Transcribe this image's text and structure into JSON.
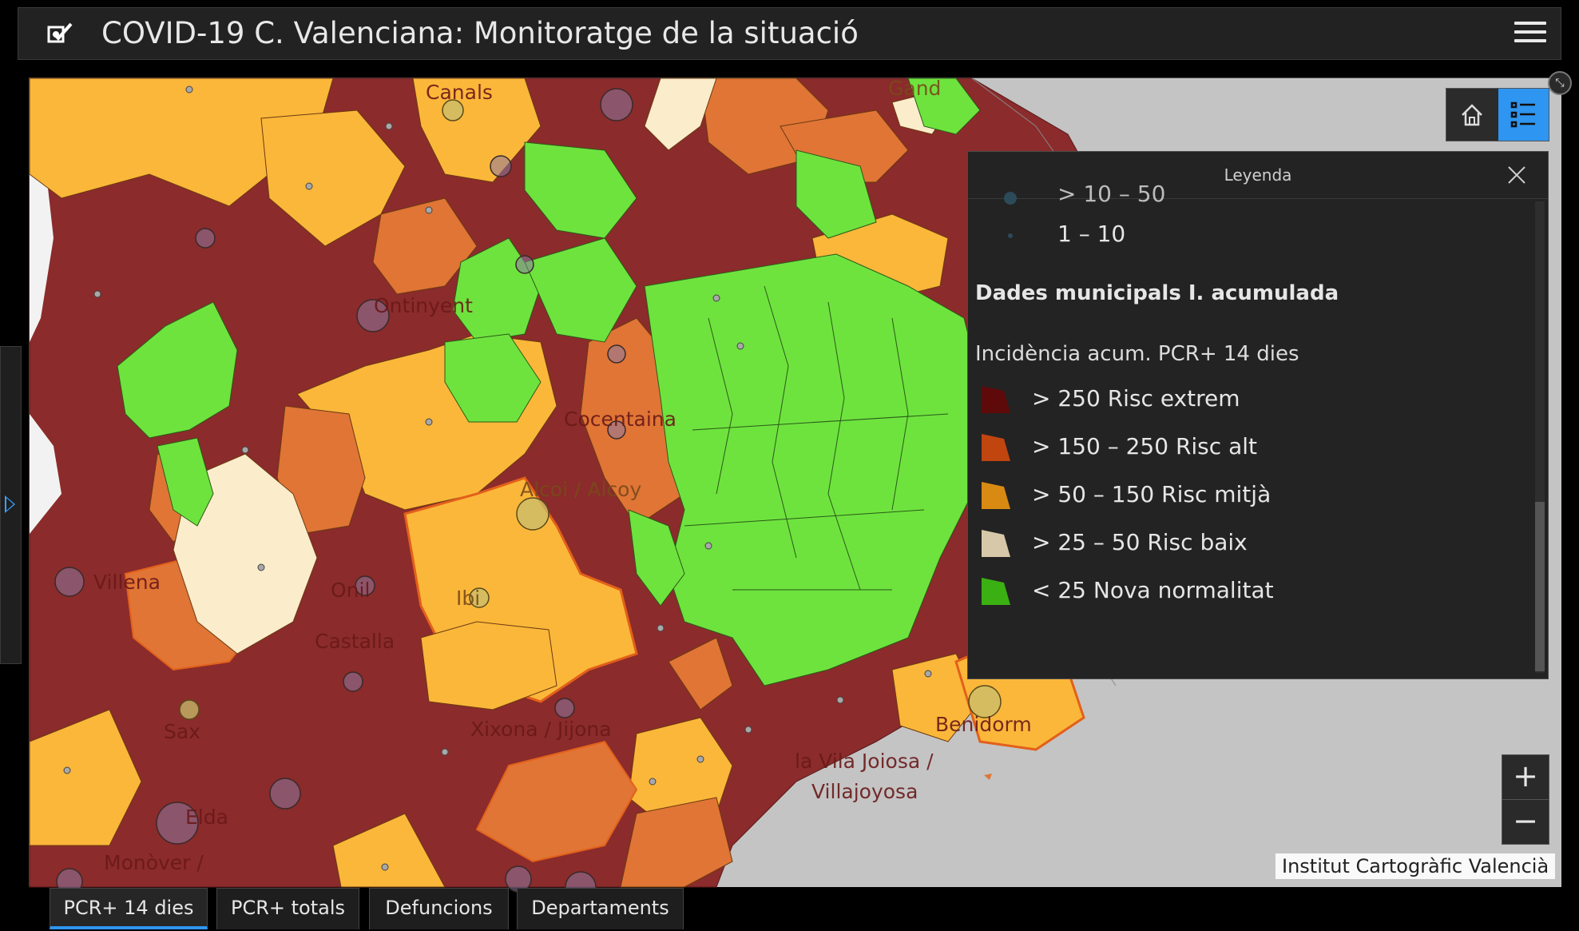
{
  "header": {
    "title": "COVID-19 C. Valenciana: Monitoratge de la situació"
  },
  "map": {
    "places": [
      "Canals",
      "Ontinyent",
      "Cocentaina",
      "Alcoi / Alcoy",
      "Villena",
      "Onil",
      "Ibi",
      "Castalla",
      "Sax",
      "Xixona / Jijona",
      "Elda",
      "Monòver /",
      "la Vila Joiosa /",
      "Villajoyosa",
      "Benidorm",
      "Gand"
    ],
    "attribution": "Institut Cartogràfic Valencià",
    "zoom_in": "+",
    "zoom_out": "−"
  },
  "legend": {
    "title": "Leyenda",
    "partial_item": "> 10 – 50",
    "small_item": "1 – 10",
    "section_title": "Dades municipals I. acumulada",
    "subtitle": "Incidència acum. PCR+ 14 dies",
    "items": [
      {
        "label": "> 250 Risc extrem",
        "color": "#5e0a0a"
      },
      {
        "label": "> 150 – 250 Risc alt",
        "color": "#c0450f"
      },
      {
        "label": "> 50 – 150 Risc mitjà",
        "color": "#d88a12"
      },
      {
        "label": "> 25 – 50 Risc baix",
        "color": "#d6c8a8"
      },
      {
        "label": "< 25 Nova normalitat",
        "color": "#3bb012"
      }
    ]
  },
  "colors": {
    "extreme": "#8b2b2b",
    "high": "#e07535",
    "medium": "#fbb73a",
    "low": "#fbeccb",
    "normal": "#6ee33e",
    "accent": "#2e95f0"
  },
  "tabs": [
    {
      "label": "PCR+ 14 dies",
      "active": true
    },
    {
      "label": "PCR+ totals"
    },
    {
      "label": "Defuncions"
    },
    {
      "label": "Departaments"
    }
  ]
}
